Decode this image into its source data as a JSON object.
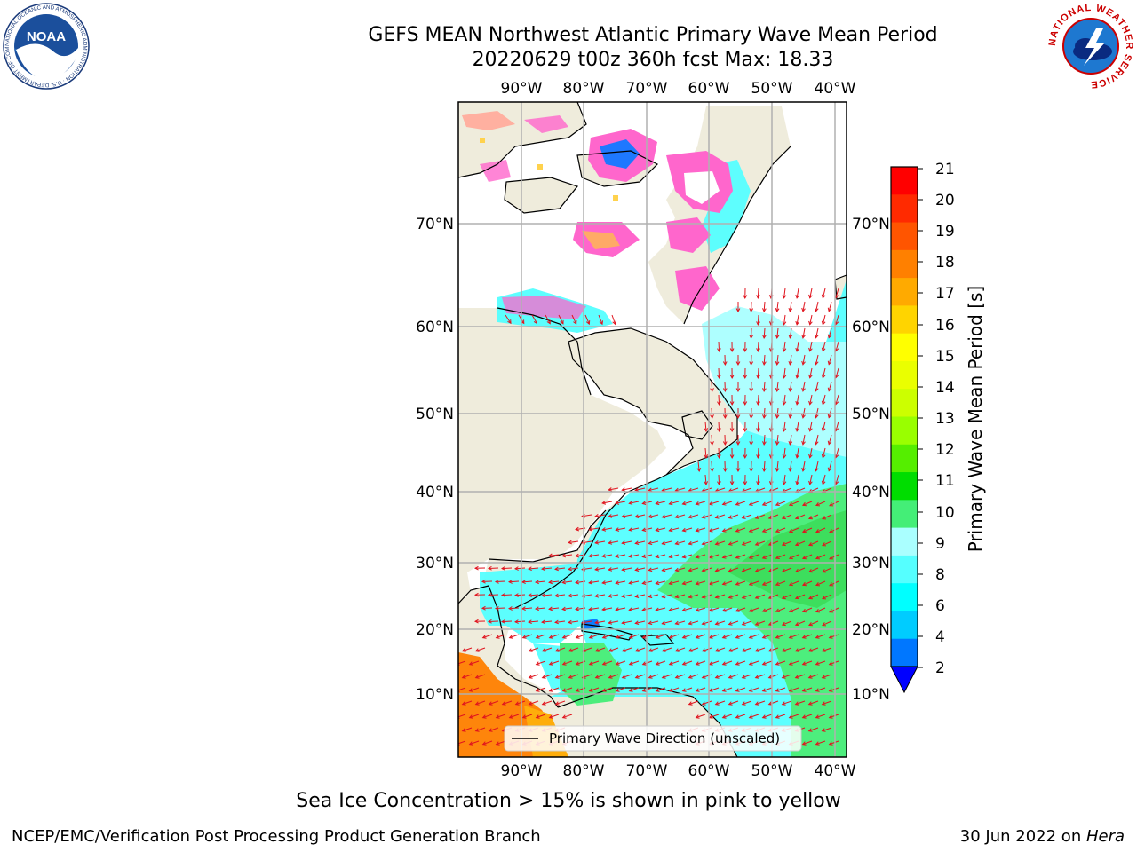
{
  "header": {
    "title_line1": "GEFS MEAN Northwest Atlantic Primary Wave Mean Period",
    "title_line2": "20220629 t00z 360h fcst   Max: 18.33"
  },
  "logos": {
    "noaa_text": "NOAA",
    "noaa_ring_text": "NATIONAL OCEANIC AND ATMOSPHERIC ADMINISTRATION · U.S. DEPARTMENT OF COMMERCE",
    "nws_ring_text": "NATIONAL WEATHER SERVICE"
  },
  "map": {
    "lon_labels": [
      "90°W",
      "80°W",
      "70°W",
      "60°W",
      "50°W",
      "40°W"
    ],
    "lat_labels": [
      "70°N",
      "60°N",
      "50°N",
      "40°N",
      "30°N",
      "20°N",
      "10°N"
    ],
    "colors": {
      "land": "#efecdc",
      "coast": "#000000",
      "grid": "#b0b0b0",
      "arrow": "#e0141e",
      "ice_pink": "#ff66cc",
      "ice_yellow": "#ffd24d"
    },
    "legend_label": "Primary Wave Direction (unscaled)"
  },
  "colorbar": {
    "title": "Primary Wave Mean Period [s]",
    "ticks": [
      "21",
      "20",
      "19",
      "18",
      "17",
      "16",
      "15",
      "14",
      "13",
      "12",
      "11",
      "10",
      "9",
      "8",
      "6",
      "4",
      "2"
    ],
    "colors": [
      "#ff0000",
      "#ff2a00",
      "#ff5500",
      "#ff8000",
      "#ffaa00",
      "#ffd400",
      "#ffff00",
      "#eaff00",
      "#ccff00",
      "#99ff00",
      "#55ee00",
      "#00dd00",
      "#44ee77",
      "#aaffff",
      "#55ffff",
      "#00ffff",
      "#00ccff",
      "#0077ff"
    ],
    "under_color": "#0000ff"
  },
  "footer": {
    "note": "Sea Ice Concentration > 15% is shown in pink to yellow",
    "left": "NCEP/EMC/Verification Post Processing Product Generation Branch",
    "right_prefix": "30 Jun 2022 on ",
    "right_machine": "Hera"
  }
}
